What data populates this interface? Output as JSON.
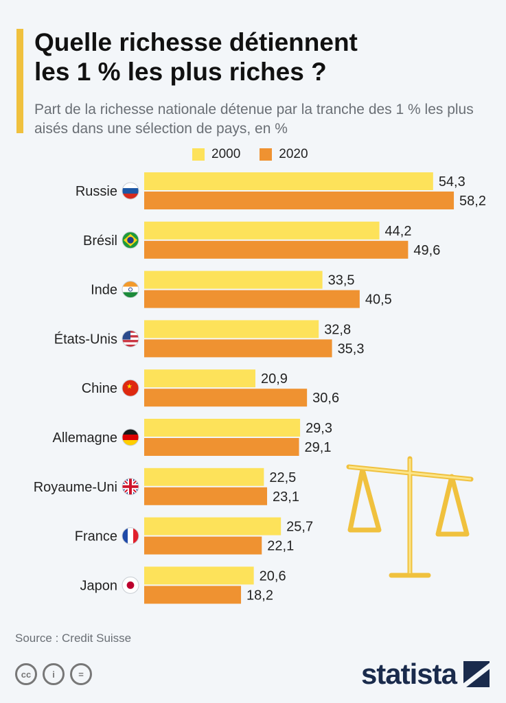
{
  "title": "Quelle richesse détiennent\nles 1 % les plus riches ?",
  "subtitle": "Part de la richesse nationale détenue par la tranche des 1 % les plus aisés dans une sélection de pays, en %",
  "colors": {
    "accent": "#f0c13e",
    "series_2000": "#fde25a",
    "series_2020": "#ef9231",
    "brand": "#1a2b4c"
  },
  "source": "Source : Credit Suisse",
  "license_icons": [
    "cc-icon",
    "attribution-icon",
    "no-derivatives-icon"
  ],
  "brand": "statista",
  "chart_data": {
    "type": "bar",
    "orientation": "horizontal",
    "legend_position": "top",
    "grid": false,
    "categories": [
      "Russie",
      "Brésil",
      "Inde",
      "États-Unis",
      "Chine",
      "Allemagne",
      "Royaume-Uni",
      "France",
      "Japon"
    ],
    "flags": [
      "russia-flag-icon",
      "brazil-flag-icon",
      "india-flag-icon",
      "usa-flag-icon",
      "china-flag-icon",
      "germany-flag-icon",
      "uk-flag-icon",
      "france-flag-icon",
      "japan-flag-icon"
    ],
    "series": [
      {
        "name": "2000",
        "color": "#fde25a",
        "values": [
          "54,3",
          "44,2",
          "33,5",
          "32,8",
          "20,9",
          "29,3",
          "22,5",
          "25,7",
          "20,6"
        ]
      },
      {
        "name": "2020",
        "color": "#ef9231",
        "values": [
          "58,2",
          "49,6",
          "40,5",
          "35,3",
          "30,6",
          "29,1",
          "23,1",
          "22,1",
          "18,2"
        ]
      }
    ],
    "xlim": [
      0,
      60
    ]
  }
}
